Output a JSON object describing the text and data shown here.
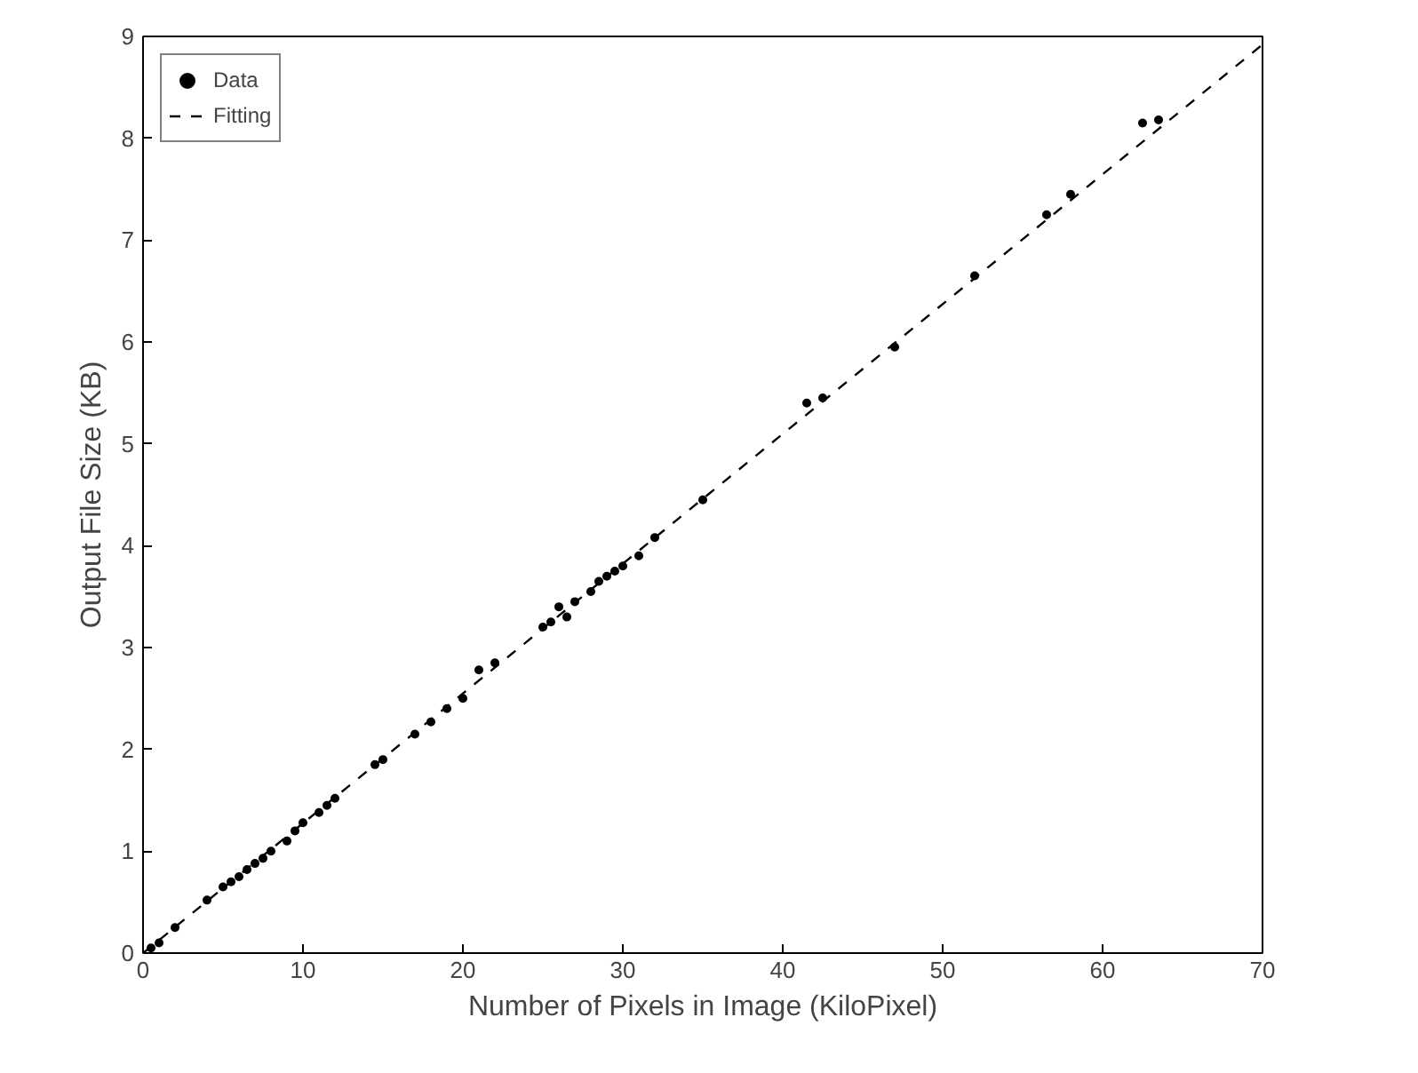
{
  "chart_data": {
    "type": "scatter",
    "xlabel": "Number of Pixels in Image (KiloPixel)",
    "ylabel": "Output File Size (KB)",
    "xlim": [
      0,
      70
    ],
    "ylim": [
      0,
      9
    ],
    "xticks": [
      0,
      10,
      20,
      30,
      40,
      50,
      60,
      70
    ],
    "yticks": [
      0,
      1,
      2,
      3,
      4,
      5,
      6,
      7,
      8,
      9
    ],
    "legend": "top left",
    "grid": false,
    "series": [
      {
        "name": "Data",
        "marker": "circle",
        "color": "#000000",
        "x": [
          0.5,
          1,
          2,
          4,
          5,
          5.5,
          6,
          6.5,
          7,
          7.5,
          8,
          9,
          9.5,
          10,
          11,
          11.5,
          12,
          14.5,
          15,
          17,
          18,
          19,
          20,
          21,
          22,
          25,
          25.5,
          26,
          26.5,
          27,
          28,
          28.5,
          29,
          29.5,
          30,
          31,
          32,
          35,
          41.5,
          42.5,
          47,
          52,
          56.5,
          58,
          62.5,
          63.5
        ],
        "values": [
          0.05,
          0.1,
          0.25,
          0.52,
          0.65,
          0.7,
          0.75,
          0.82,
          0.88,
          0.93,
          1.0,
          1.1,
          1.2,
          1.28,
          1.38,
          1.45,
          1.52,
          1.85,
          1.9,
          2.15,
          2.27,
          2.4,
          2.5,
          2.78,
          2.85,
          3.2,
          3.25,
          3.4,
          3.3,
          3.45,
          3.55,
          3.65,
          3.7,
          3.75,
          3.8,
          3.9,
          4.08,
          4.45,
          5.4,
          5.45,
          5.95,
          6.65,
          7.25,
          7.45,
          8.15,
          8.18
        ]
      },
      {
        "name": "Fitting",
        "type": "line",
        "line_style": "dashed",
        "color": "#000000",
        "x": [
          0,
          70
        ],
        "values": [
          0,
          8.92
        ]
      }
    ]
  }
}
